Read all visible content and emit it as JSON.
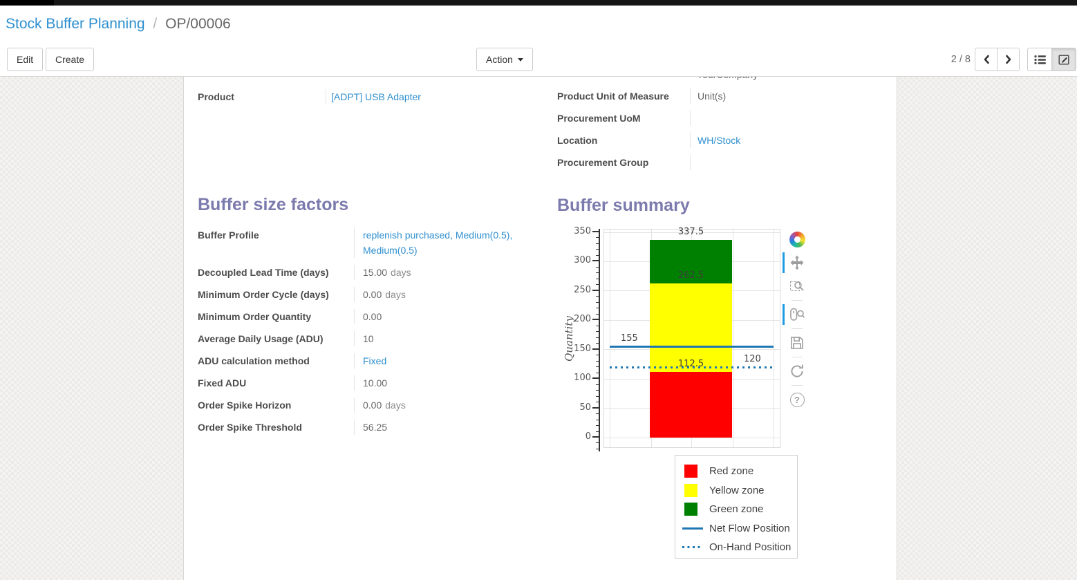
{
  "colors": {
    "accent_heading": "#7c7bad",
    "link_blue": "#2e8fcf",
    "active_tool_bar": "#1e9be2"
  },
  "breadcrumb": {
    "parent": "Stock Buffer Planning",
    "separator": "/",
    "current": "OP/00006"
  },
  "control_panel": {
    "edit_label": "Edit",
    "create_label": "Create",
    "action_label": "Action",
    "pager": "2 / 8"
  },
  "record_fields": {
    "left": [
      {
        "label": "Product",
        "value": "[ADPT] USB Adapter",
        "link": true
      }
    ],
    "right_clipped_value": "YourCompany",
    "right": [
      {
        "label": "Product Unit of Measure",
        "value": "Unit(s)",
        "link": false
      },
      {
        "label": "Procurement UoM",
        "value": "",
        "link": false
      },
      {
        "label": "Location",
        "value": "WH/Stock",
        "link": true
      },
      {
        "label": "Procurement Group",
        "value": "",
        "link": false
      }
    ]
  },
  "buffer_size_factors": {
    "title": "Buffer size factors",
    "rows": [
      {
        "label": "Buffer Profile",
        "value": "replenish purchased, Medium(0.5), Medium(0.5)",
        "link": true
      },
      {
        "label": "Decoupled Lead Time (days)",
        "value": "15.00",
        "unit": "days"
      },
      {
        "label": "Minimum Order Cycle (days)",
        "value": "0.00",
        "unit": "days"
      },
      {
        "label": "Minimum Order Quantity",
        "value": "0.00"
      },
      {
        "label": "Average Daily Usage (ADU)",
        "value": "10"
      },
      {
        "label": "ADU calculation method",
        "value": "Fixed",
        "link": true
      },
      {
        "label": "Fixed ADU",
        "value": "10.00"
      },
      {
        "label": "Order Spike Horizon",
        "value": "0.00",
        "unit": "days"
      },
      {
        "label": "Order Spike Threshold",
        "value": "56.25"
      }
    ]
  },
  "buffer_summary": {
    "title": "Buffer summary",
    "chart_data": {
      "type": "bar",
      "title": "",
      "xlabel": "",
      "ylabel": "Quantity",
      "ylim": [
        0,
        350
      ],
      "yticks": [
        0,
        50,
        100,
        150,
        200,
        250,
        300,
        350
      ],
      "minor_tick_step": 10,
      "grid": true,
      "zones": [
        {
          "name": "Red zone",
          "color": "#ff0000",
          "from": 0,
          "to": 112.5
        },
        {
          "name": "Yellow zone",
          "color": "#ffff00",
          "from": 112.5,
          "to": 262.5
        },
        {
          "name": "Green zone",
          "color": "#008000",
          "from": 262.5,
          "to": 337.5
        }
      ],
      "lines": [
        {
          "name": "Net Flow Position",
          "value": 155,
          "style": "solid",
          "color": "#1f77b4"
        },
        {
          "name": "On-Hand Position",
          "value": 120,
          "style": "dotted",
          "color": "#1f77b4"
        }
      ],
      "annotations": [
        {
          "text": "337.5",
          "anchor": "bar",
          "value": 337.5
        },
        {
          "text": "262.5",
          "anchor": "bar",
          "value": 262.5
        },
        {
          "text": "112.5",
          "anchor": "bar",
          "value": 112.5
        },
        {
          "text": "155",
          "anchor": "left",
          "value": 155
        },
        {
          "text": "120",
          "anchor": "right",
          "value": 120
        }
      ],
      "legend_position": "below-right",
      "legend": [
        {
          "label": "Red zone",
          "swatch": "rect",
          "color": "#ff0000"
        },
        {
          "label": "Yellow zone",
          "swatch": "rect",
          "color": "#ffff00"
        },
        {
          "label": "Green zone",
          "swatch": "rect",
          "color": "#008000"
        },
        {
          "label": "Net Flow Position",
          "swatch": "line",
          "color": "#1f77b4"
        },
        {
          "label": "On-Hand Position",
          "swatch": "dots",
          "color": "#1f77b4"
        }
      ]
    },
    "toolbar": {
      "logo": "bokeh-logo",
      "tools": [
        {
          "name": "pan-tool",
          "active": true
        },
        {
          "name": "box-zoom-tool",
          "active": false
        },
        {
          "name": "wheel-zoom-tool",
          "active": true
        },
        {
          "name": "save-tool",
          "active": false
        },
        {
          "name": "reset-tool",
          "active": false
        },
        {
          "name": "help-tool",
          "active": false
        }
      ]
    }
  }
}
